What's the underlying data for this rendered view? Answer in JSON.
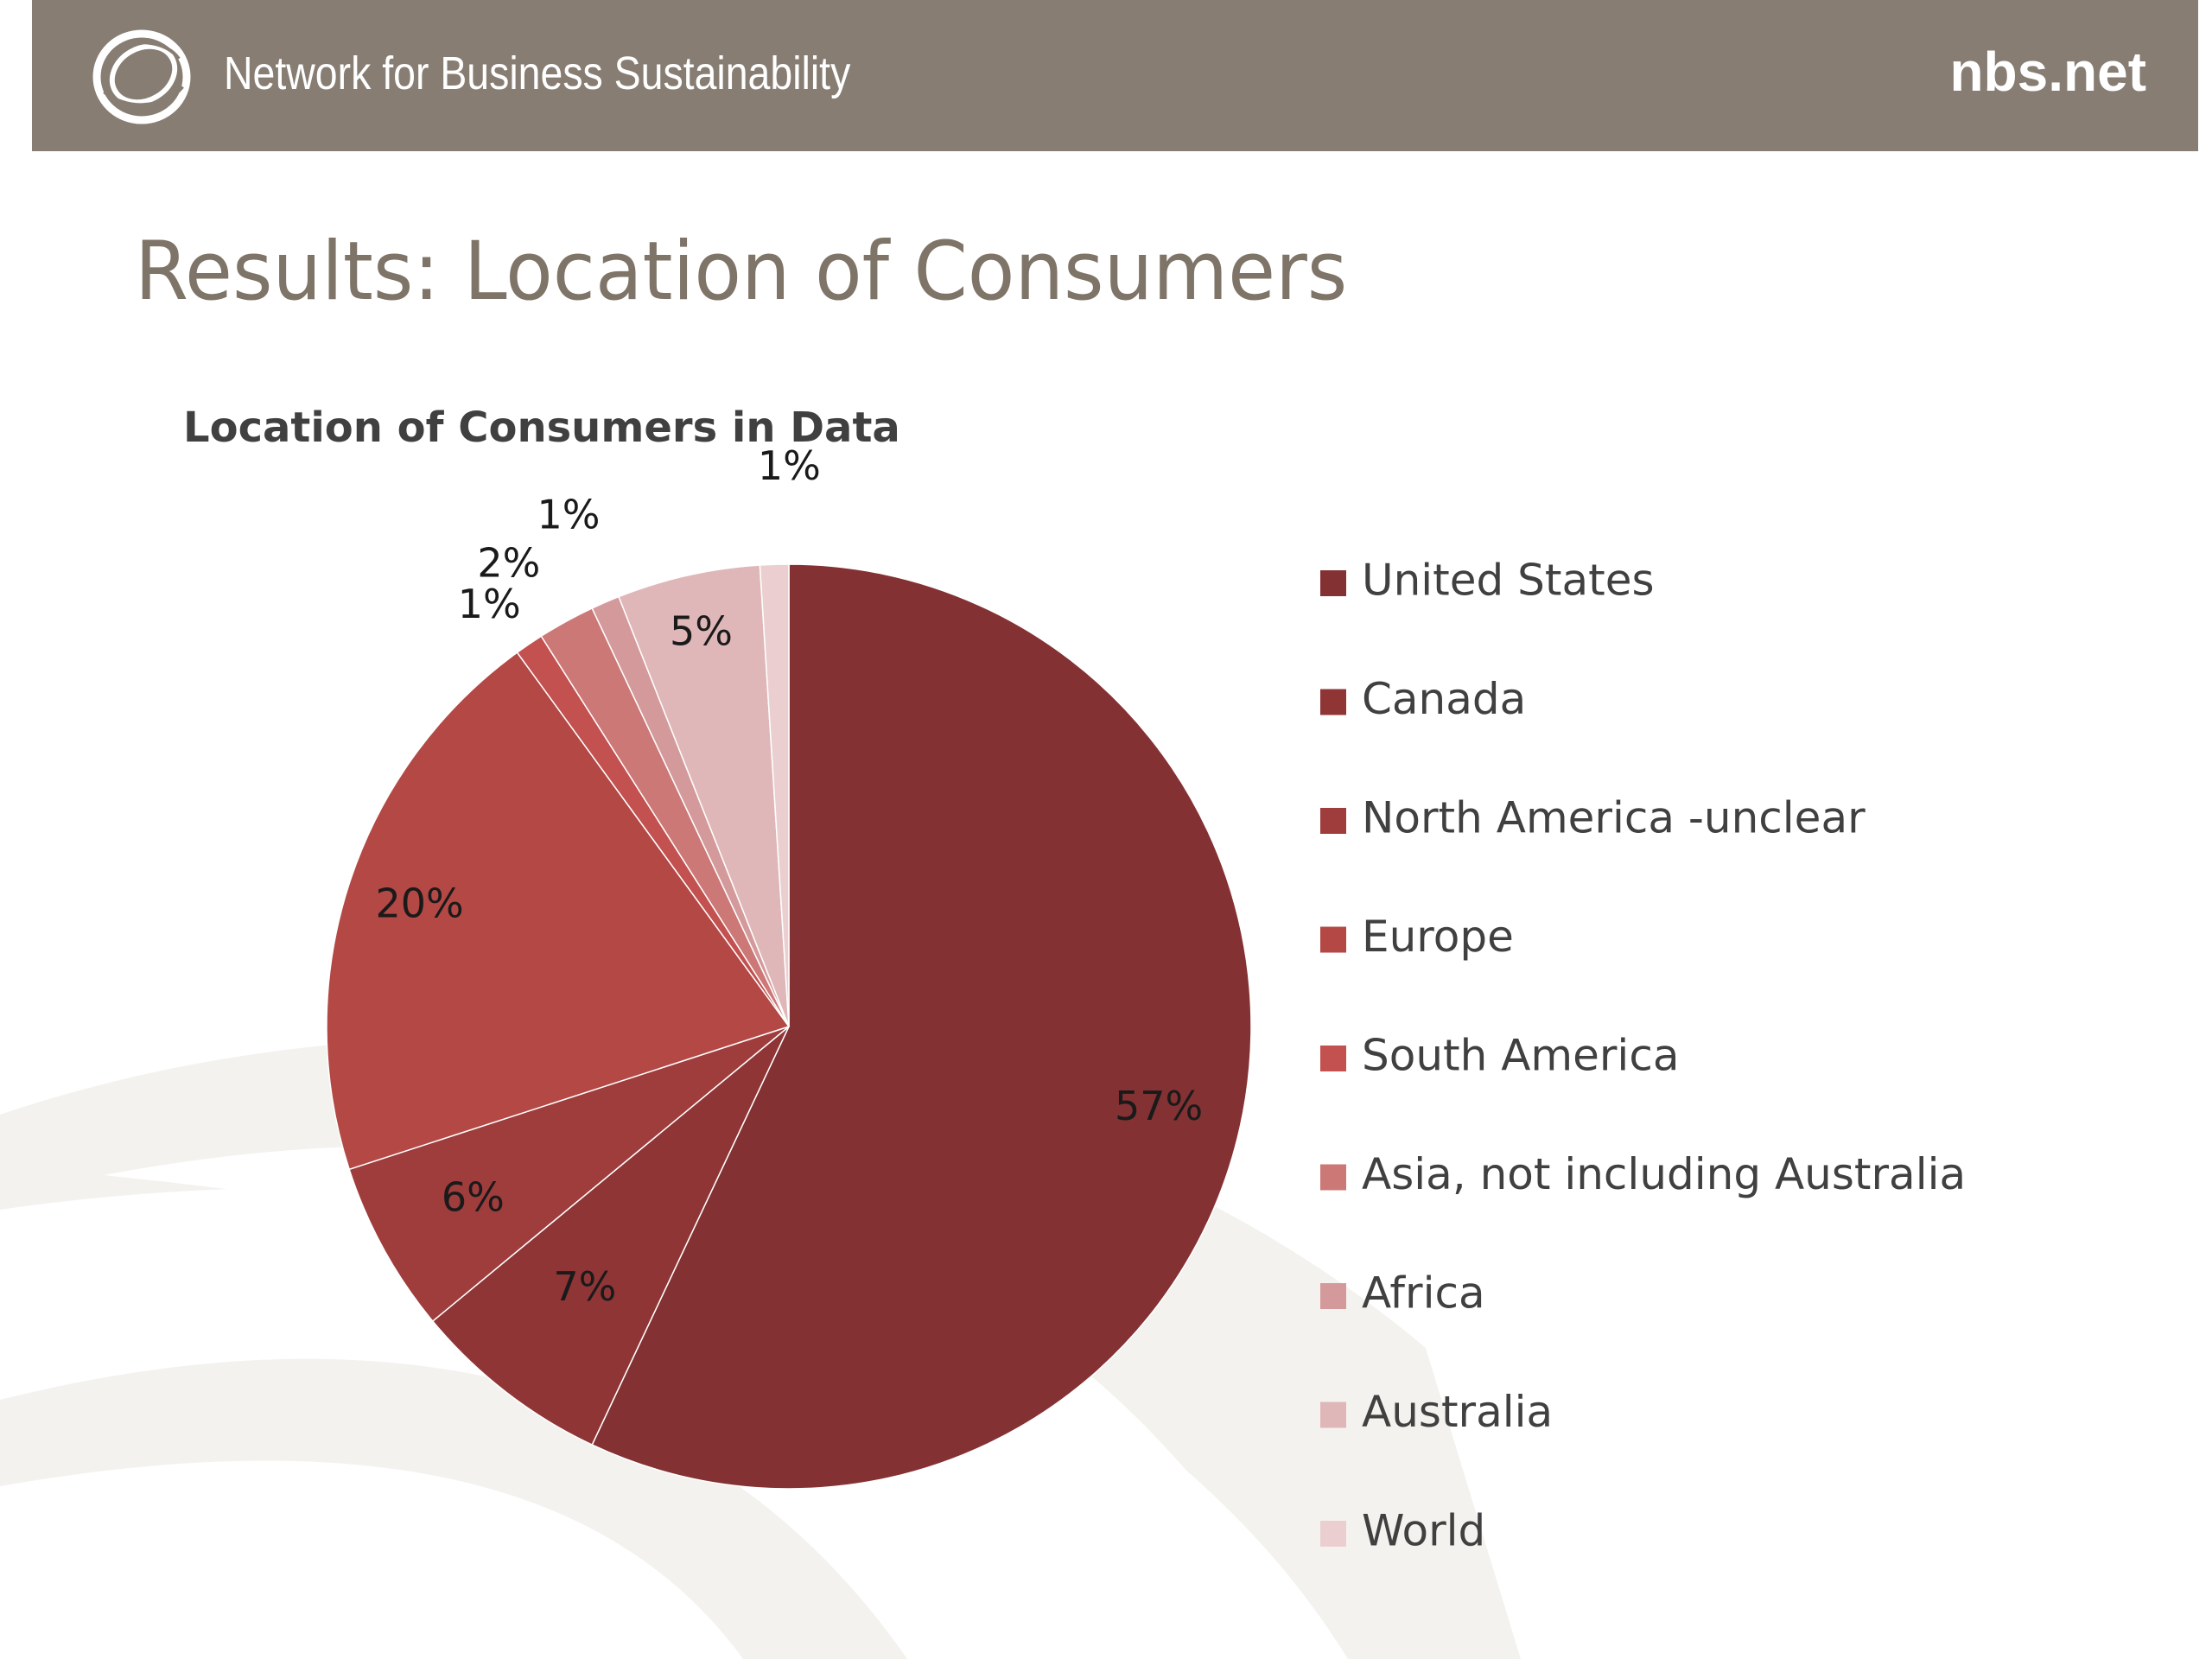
{
  "header": {
    "org_name": "Network for Business Sustainability",
    "url": "nbs.net",
    "logo_icon": "nbs-ring-logo-icon",
    "background_color": "#877d73"
  },
  "slide": {
    "title": "Results: Location of Consumers"
  },
  "chart_data": {
    "type": "pie",
    "title": "Location of Consumers in Data",
    "start_angle_deg": 0,
    "direction": "clockwise",
    "slices": [
      {
        "name": "United States",
        "value": 57,
        "label": "57%",
        "color": "#843133"
      },
      {
        "name": "Canada",
        "value": 7,
        "label": "7%",
        "color": "#8f3536"
      },
      {
        "name": "North America -unclear",
        "value": 6,
        "label": "6%",
        "color": "#9f3d3c"
      },
      {
        "name": "Europe",
        "value": 20,
        "label": "20%",
        "color": "#b34845"
      },
      {
        "name": "South America",
        "value": 1,
        "label": "1%",
        "color": "#c25150"
      },
      {
        "name": "Asia, not including Australia",
        "value": 2,
        "label": "2%",
        "color": "#cc7877"
      },
      {
        "name": "Africa",
        "value": 1,
        "label": "1%",
        "color": "#d49a9b"
      },
      {
        "name": "Australia",
        "value": 5,
        "label": "5%",
        "color": "#dfb7b8"
      },
      {
        "name": "World",
        "value": 1,
        "label": "1%",
        "color": "#ebcfd0"
      }
    ],
    "legend_position": "right",
    "data_labels": true
  }
}
